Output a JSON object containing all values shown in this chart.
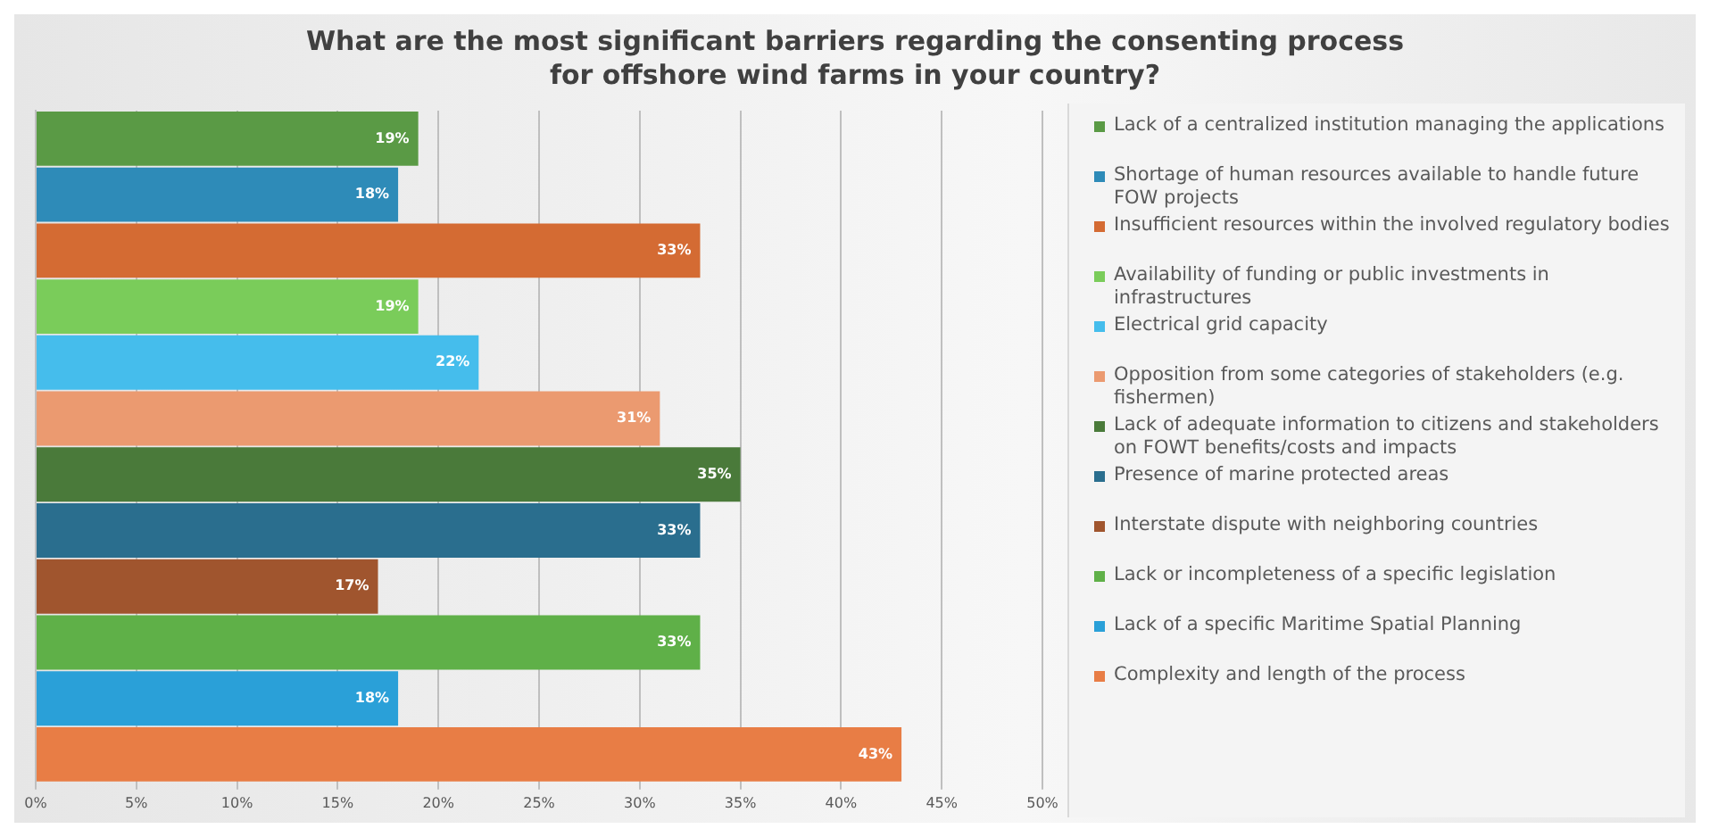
{
  "chart_data": {
    "type": "bar",
    "orientation": "horizontal",
    "title": "What are the most significant barriers regarding the consenting process for offshore wind farms in your country?",
    "categories": [
      null,
      null,
      null,
      null,
      null,
      null,
      null,
      null,
      null,
      null,
      null,
      null
    ],
    "series": [
      {
        "name": "Lack of a centralized institution managing the applications",
        "color": "#5a9a45",
        "values": [
          19,
          null,
          null,
          null,
          null,
          null,
          null,
          null,
          null,
          null,
          null,
          null
        ],
        "value_labels": [
          "19%",
          null,
          null,
          null,
          null,
          null,
          null,
          null,
          null,
          null,
          null,
          null
        ]
      },
      {
        "name": "Shortage of human resources available to handle future FOW projects",
        "color": "#2e8bb8",
        "values": [
          null,
          18,
          null,
          null,
          null,
          null,
          null,
          null,
          null,
          null,
          null,
          null
        ],
        "value_labels": [
          null,
          "18%",
          null,
          null,
          null,
          null,
          null,
          null,
          null,
          null,
          null,
          null
        ]
      },
      {
        "name": "Insufficient resources within the involved regulatory bodies",
        "color": "#d46b33",
        "values": [
          null,
          null,
          33,
          null,
          null,
          null,
          null,
          null,
          null,
          null,
          null,
          null
        ],
        "value_labels": [
          null,
          null,
          "33%",
          null,
          null,
          null,
          null,
          null,
          null,
          null,
          null,
          null
        ]
      },
      {
        "name": "Availability of funding or public investments in infrastructures",
        "color": "#7acc5a",
        "values": [
          null,
          null,
          null,
          19,
          null,
          null,
          null,
          null,
          null,
          null,
          null,
          null
        ],
        "value_labels": [
          null,
          null,
          null,
          "19%",
          null,
          null,
          null,
          null,
          null,
          null,
          null,
          null
        ]
      },
      {
        "name": "Electrical grid capacity",
        "color": "#45bdec",
        "values": [
          null,
          null,
          null,
          null,
          22,
          null,
          null,
          null,
          null,
          null,
          null,
          null
        ],
        "value_labels": [
          null,
          null,
          null,
          null,
          "22%",
          null,
          null,
          null,
          null,
          null,
          null,
          null
        ]
      },
      {
        "name": "Opposition from some categories of stakeholders (e.g. fishermen)",
        "color": "#eb9a70",
        "values": [
          null,
          null,
          null,
          null,
          null,
          31,
          null,
          null,
          null,
          null,
          null,
          null
        ],
        "value_labels": [
          null,
          null,
          null,
          null,
          null,
          "31%",
          null,
          null,
          null,
          null,
          null,
          null
        ]
      },
      {
        "name": "Lack of adequate information to citizens and stakeholders on FOWT benefits/costs and impacts",
        "color": "#4a7a3a",
        "values": [
          null,
          null,
          null,
          null,
          null,
          null,
          35,
          null,
          null,
          null,
          null,
          null
        ],
        "value_labels": [
          null,
          null,
          null,
          null,
          null,
          null,
          "35%",
          null,
          null,
          null,
          null,
          null
        ]
      },
      {
        "name": "Presence of marine protected areas",
        "color": "#2a6e8e",
        "values": [
          null,
          null,
          null,
          null,
          null,
          null,
          null,
          33,
          null,
          null,
          null,
          null
        ],
        "value_labels": [
          null,
          null,
          null,
          null,
          null,
          null,
          null,
          "33%",
          null,
          null,
          null,
          null
        ]
      },
      {
        "name": "Interstate dispute with neighboring countries",
        "color": "#a0552e",
        "values": [
          null,
          null,
          null,
          null,
          null,
          null,
          null,
          null,
          17,
          null,
          null,
          null
        ],
        "value_labels": [
          null,
          null,
          null,
          null,
          null,
          null,
          null,
          null,
          "17%",
          null,
          null,
          null
        ]
      },
      {
        "name": "Lack or incompleteness of a specific legislation",
        "color": "#5fb048",
        "values": [
          null,
          null,
          null,
          null,
          null,
          null,
          null,
          null,
          null,
          33,
          null,
          null
        ],
        "value_labels": [
          null,
          null,
          null,
          null,
          null,
          null,
          null,
          null,
          null,
          "33%",
          null,
          null
        ]
      },
      {
        "name": "Lack of a specific Maritime Spatial Planning",
        "color": "#2aa0d8",
        "values": [
          null,
          null,
          null,
          null,
          null,
          null,
          null,
          null,
          null,
          null,
          18,
          null
        ],
        "value_labels": [
          null,
          null,
          null,
          null,
          null,
          null,
          null,
          null,
          null,
          null,
          "18%",
          null
        ]
      },
      {
        "name": "Complexity and length of the process",
        "color": "#e87d45",
        "values": [
          null,
          null,
          null,
          null,
          null,
          null,
          null,
          null,
          null,
          null,
          null,
          43
        ],
        "value_labels": [
          null,
          null,
          null,
          null,
          null,
          null,
          null,
          null,
          null,
          null,
          null,
          "43%"
        ]
      }
    ],
    "xlim": [
      0,
      50
    ],
    "xticks": [
      {
        "value": 0,
        "label": "0%"
      },
      {
        "value": 5,
        "label": "5%"
      },
      {
        "value": 10,
        "label": "10%"
      },
      {
        "value": 15,
        "label": "15%"
      },
      {
        "value": 20,
        "label": "20%"
      },
      {
        "value": 25,
        "label": "25%"
      },
      {
        "value": 30,
        "label": "30%"
      },
      {
        "value": 35,
        "label": "35%"
      },
      {
        "value": 40,
        "label": "40%"
      },
      {
        "value": 45,
        "label": "45%"
      },
      {
        "value": 50,
        "label": "50%"
      }
    ],
    "grid": "x",
    "legend": "right"
  }
}
